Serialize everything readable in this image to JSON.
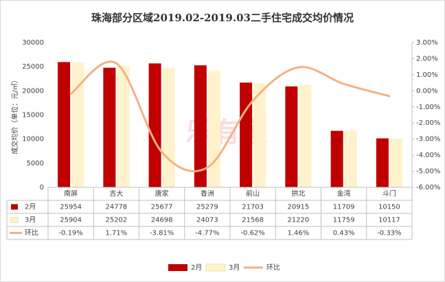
{
  "chart_data": {
    "type": "bar",
    "title": "珠海部分区域2019.02-2019.03二手住宅成交均价情况",
    "y_label": "成交均价（单位：元/㎡）",
    "watermark": "乐有家",
    "categories": [
      "南屏",
      "吉大",
      "唐家",
      "香洲",
      "前山",
      "拱北",
      "金湾",
      "斗门"
    ],
    "series": [
      {
        "name": "2月",
        "type": "bar",
        "color": "#c00000",
        "values": [
          25954,
          24778,
          25677,
          25279,
          21703,
          20915,
          11709,
          10150
        ]
      },
      {
        "name": "3月",
        "type": "bar",
        "color": "#fff2cc",
        "values": [
          25904,
          25202,
          24698,
          24073,
          21568,
          21220,
          11759,
          10117
        ]
      },
      {
        "name": "环比",
        "type": "line",
        "axis": "y2",
        "color": "#f4b183",
        "values": [
          -0.19,
          1.71,
          -3.81,
          -4.77,
          -0.62,
          1.46,
          0.43,
          -0.33
        ],
        "value_labels": [
          "-0.19%",
          "1.71%",
          "-3.81%",
          "-4.77%",
          "-0.62%",
          "1.46%",
          "0.43%",
          "-0.33%"
        ]
      }
    ],
    "ylim": [
      0,
      30000
    ],
    "yticks": [
      0,
      5000,
      10000,
      15000,
      20000,
      25000,
      30000
    ],
    "y2lim": [
      -6,
      3
    ],
    "y2ticks": [
      {
        "value": 3,
        "label": "3.00%"
      },
      {
        "value": 2,
        "label": "2.00%"
      },
      {
        "value": 1,
        "label": "1.00%"
      },
      {
        "value": 0,
        "label": "0.00%"
      },
      {
        "value": -1,
        "label": "-1.00%"
      },
      {
        "value": -2,
        "label": "-2.00%"
      },
      {
        "value": -3,
        "label": "-3.00%"
      },
      {
        "value": -4,
        "label": "-4.00%"
      },
      {
        "value": -5,
        "label": "-5.00%"
      },
      {
        "value": -6,
        "label": "-6.00%"
      }
    ],
    "legend": "bottom"
  }
}
